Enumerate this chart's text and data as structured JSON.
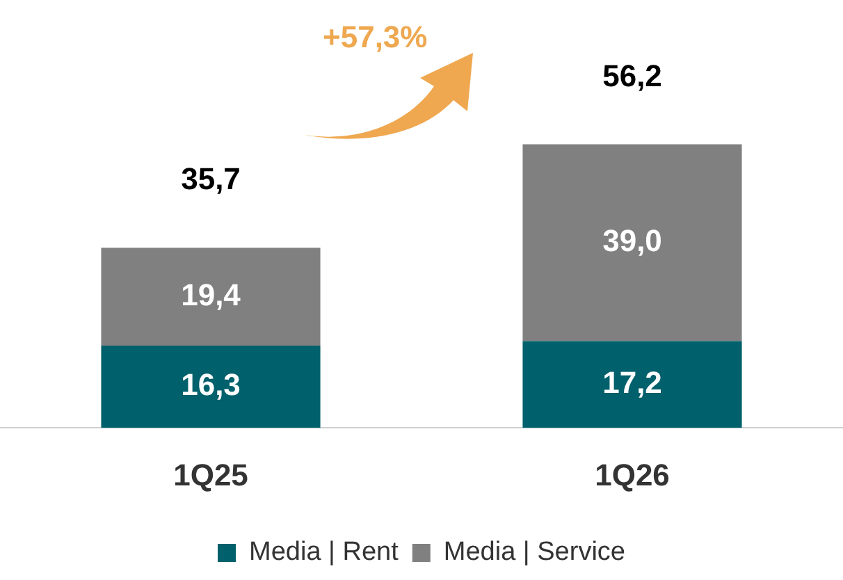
{
  "chart_data": {
    "type": "bar",
    "stacked": true,
    "categories": [
      "1Q25",
      "1Q26"
    ],
    "series": [
      {
        "name": "Media | Rent",
        "color": "#00606b",
        "values": [
          16.3,
          17.2
        ],
        "value_labels": [
          "16,3",
          "17,2"
        ]
      },
      {
        "name": "Media | Service",
        "color": "#808080",
        "values": [
          19.4,
          39.0
        ],
        "value_labels": [
          "19,4",
          "39,0"
        ]
      }
    ],
    "totals": [
      "35,7",
      "56,2"
    ],
    "annotations": [
      "+57,3%"
    ],
    "legend": "bottom",
    "grid": false
  }
}
